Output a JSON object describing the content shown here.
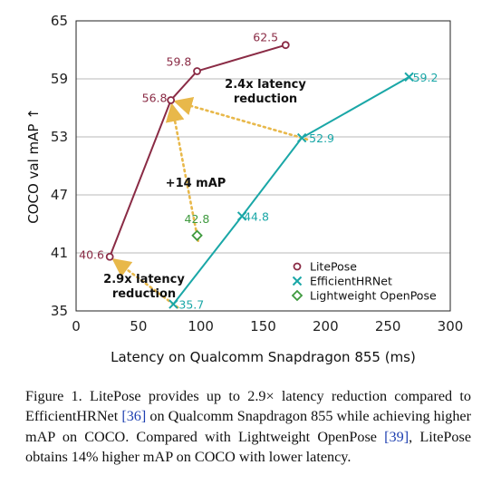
{
  "chart_data": {
    "type": "line",
    "xlabel": "Latency on Qualcomm Snapdragon 855 (ms)",
    "ylabel": "COCO val mAP ↑",
    "xlim": [
      0,
      300
    ],
    "ylim": [
      35,
      65
    ],
    "xticks": [
      0,
      50,
      100,
      150,
      200,
      250,
      300
    ],
    "yticks": [
      35,
      41,
      47,
      53,
      59,
      65
    ],
    "grid": "horizontal",
    "legend_position": "bottom-right",
    "series": [
      {
        "name": "LitePose",
        "color": "#8a2b45",
        "marker": "circle",
        "points": [
          {
            "x": 27,
            "y": 40.6,
            "label": "40.6"
          },
          {
            "x": 76,
            "y": 56.8,
            "label": "56.8"
          },
          {
            "x": 97,
            "y": 59.8,
            "label": "59.8"
          },
          {
            "x": 168,
            "y": 62.5,
            "label": "62.5"
          }
        ]
      },
      {
        "name": "EfficientHRNet",
        "color": "#1aa7a7",
        "marker": "x",
        "points": [
          {
            "x": 78,
            "y": 35.7,
            "label": "35.7"
          },
          {
            "x": 133,
            "y": 44.8,
            "label": "44.8"
          },
          {
            "x": 181,
            "y": 52.9,
            "label": "52.9"
          },
          {
            "x": 267,
            "y": 59.2,
            "label": "59.2"
          }
        ]
      },
      {
        "name": "Lightweight OpenPose",
        "color": "#3f9a3f",
        "marker": "diamond",
        "points": [
          {
            "x": 97,
            "y": 42.8,
            "label": "42.8"
          }
        ]
      }
    ],
    "annotations": [
      {
        "lines": [
          "2.4x latency",
          "reduction"
        ],
        "from": {
          "x": 181,
          "y": 52.9
        },
        "to": {
          "x": 76,
          "y": 56.8
        }
      },
      {
        "lines": [
          "+14 mAP"
        ],
        "from": {
          "x": 97,
          "y": 42.8
        },
        "to": {
          "x": 76,
          "y": 56.8
        }
      },
      {
        "lines": [
          "2.9x latency",
          "reduction"
        ],
        "from": {
          "x": 78,
          "y": 35.7
        },
        "to": {
          "x": 27,
          "y": 40.6
        }
      }
    ],
    "arrow_color": "#e8b84a"
  },
  "caption": {
    "p1": "Figure 1. LitePose provides up to 2.9× latency reduction compared to EfficientHRNet ",
    "ref1": "[36]",
    "p2": " on Qualcomm Snapdragon 855 while achieving higher mAP on COCO. Compared with Lightweight OpenPose ",
    "ref2": "[39]",
    "p3": ", LitePose obtains 14% higher mAP on COCO with lower latency."
  }
}
